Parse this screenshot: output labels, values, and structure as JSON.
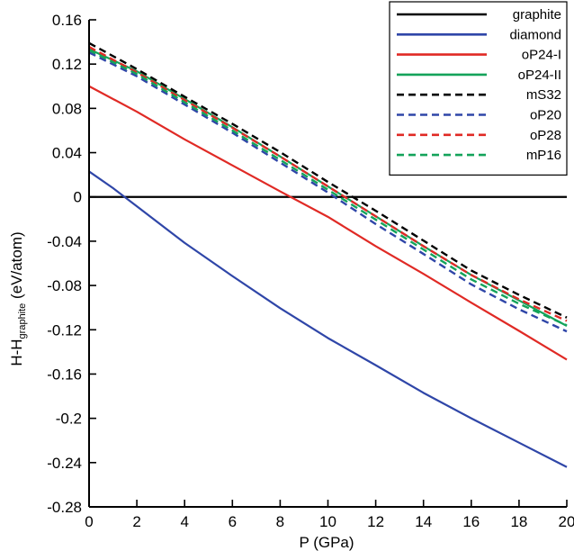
{
  "chart_data": {
    "type": "line",
    "xlabel": "P (GPa)",
    "ylabel": {
      "main": "H-H",
      "subscript": "graphite",
      "unit": " (eV/atom)"
    },
    "xlim": [
      0,
      20
    ],
    "ylim": [
      -0.28,
      0.16
    ],
    "x_ticks": [
      "0",
      "2",
      "4",
      "6",
      "8",
      "10",
      "12",
      "14",
      "16",
      "18",
      "20"
    ],
    "y_ticks": [
      "0.16",
      "0.12",
      "0.08",
      "0.04",
      "0",
      "-0.04",
      "-0.08",
      "-0.12",
      "-0.16",
      "-0.2",
      "-0.24",
      "-0.28"
    ],
    "legend_position": "top-right",
    "grid": false,
    "series": [
      {
        "name": "graphite",
        "color": "#000000",
        "dash": "solid",
        "x": [
          0,
          20
        ],
        "y": [
          0,
          0
        ]
      },
      {
        "name": "diamond",
        "color": "#2f46a8",
        "dash": "solid",
        "x": [
          0,
          1,
          2,
          4,
          6,
          8,
          10,
          12,
          14,
          16,
          18,
          20
        ],
        "y": [
          0.023,
          0.008,
          -0.0085,
          -0.0415,
          -0.0715,
          -0.1005,
          -0.1275,
          -0.152,
          -0.177,
          -0.2,
          -0.222,
          -0.244
        ]
      },
      {
        "name": "oP24-I",
        "color": "#e02a25",
        "dash": "solid",
        "x": [
          0,
          2,
          4,
          6,
          8,
          10,
          12,
          14,
          16,
          18,
          20
        ],
        "y": [
          0.1,
          0.077,
          0.052,
          0.0285,
          0.005,
          -0.018,
          -0.0445,
          -0.0695,
          -0.0955,
          -0.121,
          -0.147
        ]
      },
      {
        "name": "oP24-II",
        "color": "#14a35a",
        "dash": "solid",
        "x": [
          0,
          2,
          4,
          6,
          8,
          10,
          12,
          14,
          16,
          18,
          20
        ],
        "y": [
          0.1335,
          0.1135,
          0.0885,
          0.063,
          0.0365,
          0.0095,
          -0.0175,
          -0.0445,
          -0.0705,
          -0.0935,
          -0.1165
        ]
      },
      {
        "name": "mS32",
        "color": "#000000",
        "dash": "dashed",
        "x": [
          0,
          2,
          4,
          6,
          8,
          10,
          12,
          14,
          16,
          18,
          20
        ],
        "y": [
          0.139,
          0.1155,
          0.0905,
          0.066,
          0.0405,
          0.0135,
          -0.0125,
          -0.0395,
          -0.0665,
          -0.0885,
          -0.109
        ]
      },
      {
        "name": "oP20",
        "color": "#2f46a8",
        "dash": "dashed",
        "x": [
          0,
          2,
          4,
          6,
          8,
          10,
          12,
          14,
          16,
          18,
          20
        ],
        "y": [
          0.1305,
          0.109,
          0.0835,
          0.058,
          0.031,
          0.004,
          -0.0245,
          -0.0515,
          -0.079,
          -0.1015,
          -0.1215
        ]
      },
      {
        "name": "oP28",
        "color": "#e02a25",
        "dash": "dashed",
        "x": [
          0,
          2,
          4,
          6,
          8,
          10,
          12,
          14,
          16,
          18,
          20
        ],
        "y": [
          0.1355,
          0.1125,
          0.0875,
          0.0625,
          0.0365,
          0.0095,
          -0.0175,
          -0.0445,
          -0.0705,
          -0.0925,
          -0.112
        ]
      },
      {
        "name": "mP16",
        "color": "#14a35a",
        "dash": "dashed",
        "x": [
          0,
          2,
          4,
          6,
          8,
          10,
          12,
          14,
          16,
          18,
          20
        ],
        "y": [
          0.1325,
          0.111,
          0.0855,
          0.06,
          0.0335,
          0.0065,
          -0.0205,
          -0.0475,
          -0.0745,
          -0.0965,
          -0.116
        ]
      }
    ]
  }
}
